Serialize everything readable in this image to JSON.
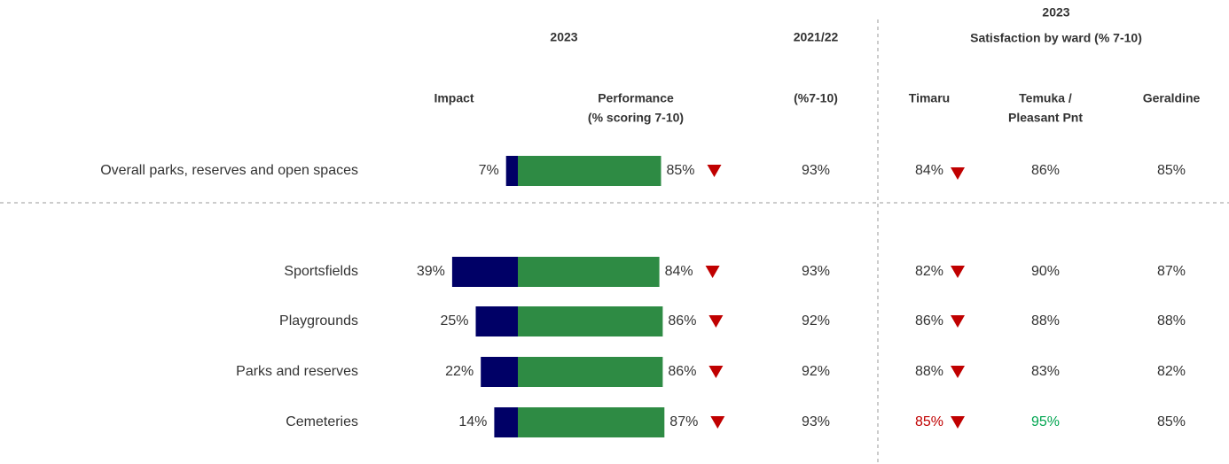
{
  "headers": {
    "year": "2023",
    "prior_year": "2021/22",
    "ward_year": "2023",
    "ward_title": "Satisfaction by ward (% 7-10)",
    "impact": "Impact",
    "performance": [
      "Performance",
      "(% scoring 7-10)"
    ],
    "prior": "(%7-10)",
    "wards": [
      [
        "Timaru"
      ],
      [
        "Temuka /",
        "Pleasant Pnt"
      ],
      [
        "Geraldine"
      ]
    ]
  },
  "rows": [
    {
      "label": "Overall parks, reserves and open spaces",
      "impact": 7,
      "impact_label": "7%",
      "performance": 85,
      "performance_label": "85%",
      "performance_down": true,
      "prior": "93%",
      "wards": [
        {
          "value": "84%",
          "down": true,
          "color": "#333333"
        },
        {
          "value": "86%",
          "color": "#333333"
        },
        {
          "value": "85%",
          "color": "#333333"
        }
      ]
    },
    {
      "label": "Sportsfields",
      "impact": 39,
      "impact_label": "39%",
      "performance": 84,
      "performance_label": "84%",
      "performance_down": true,
      "prior": "93%",
      "wards": [
        {
          "value": "82%",
          "down": true,
          "color": "#333333"
        },
        {
          "value": "90%",
          "color": "#333333"
        },
        {
          "value": "87%",
          "color": "#333333"
        }
      ]
    },
    {
      "label": "Playgrounds",
      "impact": 25,
      "impact_label": "25%",
      "performance": 86,
      "performance_label": "86%",
      "performance_down": true,
      "prior": "92%",
      "wards": [
        {
          "value": "86%",
          "down": true,
          "color": "#333333"
        },
        {
          "value": "88%",
          "color": "#333333"
        },
        {
          "value": "88%",
          "color": "#333333"
        }
      ]
    },
    {
      "label": "Parks and reserves",
      "impact": 22,
      "impact_label": "22%",
      "performance": 86,
      "performance_label": "86%",
      "performance_down": true,
      "prior": "92%",
      "wards": [
        {
          "value": "88%",
          "down": true,
          "color": "#333333"
        },
        {
          "value": "83%",
          "color": "#333333"
        },
        {
          "value": "82%",
          "color": "#333333"
        }
      ]
    },
    {
      "label": "Cemeteries",
      "impact": 14,
      "impact_label": "14%",
      "performance": 87,
      "performance_label": "87%",
      "performance_down": true,
      "prior": "93%",
      "wards": [
        {
          "value": "85%",
          "down": true,
          "color": "#c00000"
        },
        {
          "value": "95%",
          "color": "#00a550"
        },
        {
          "value": "85%",
          "color": "#333333"
        }
      ]
    }
  ],
  "colors": {
    "impact": "#000066",
    "performance": "#2e8b44",
    "down": "#c00000"
  }
}
